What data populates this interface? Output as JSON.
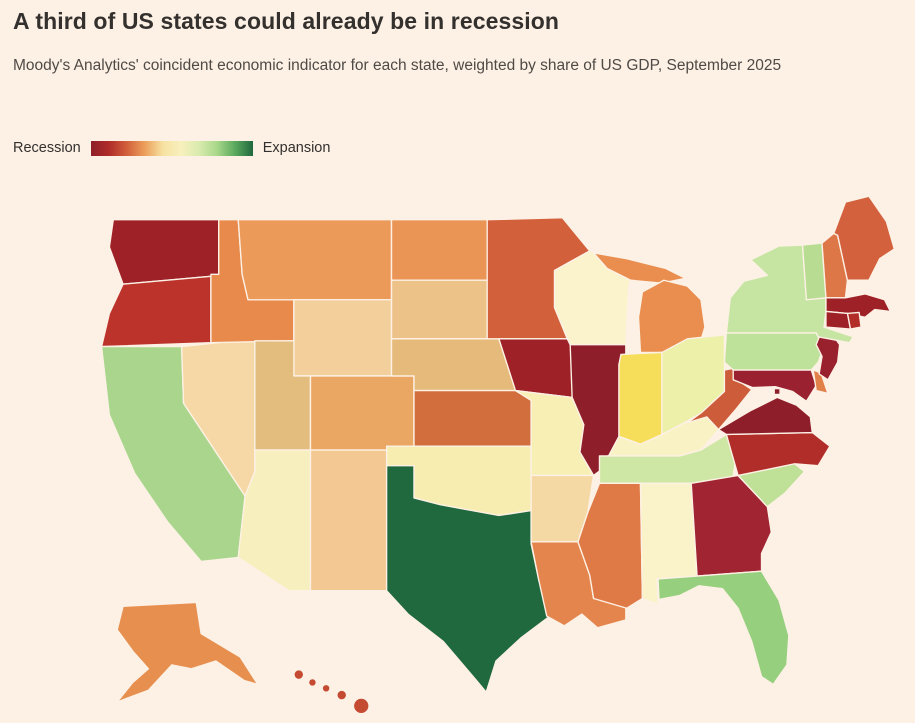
{
  "page": {
    "background": "#fdf1e5",
    "title": "A third of US states could already be in recession",
    "subtitle": "Moody's Analytics' coincident economic indicator for each state, weighted by share of US GDP, September 2025"
  },
  "legend": {
    "left_label": "Recession",
    "right_label": "Expansion",
    "gradient": [
      "#8e1f2a",
      "#b02d2a",
      "#d2603b",
      "#eca05c",
      "#f6e2a2",
      "#f8f0bd",
      "#d9ebae",
      "#a9d78a",
      "#5aa95e",
      "#20683e"
    ]
  },
  "chart_data": {
    "type": "choropleth",
    "title": "A third of US states could already be in recession",
    "subtitle": "Moody's Analytics' coincident economic indicator for each state, weighted by share of US GDP, September 2025",
    "date": "September 2025",
    "scale": {
      "left_end": "Recession",
      "right_end": "Expansion",
      "encoding": "color, dark red (recession) to dark green (expansion)"
    },
    "states": [
      {
        "code": "WA",
        "name": "Washington",
        "color": "#9e2128",
        "category": "recession"
      },
      {
        "code": "OR",
        "name": "Oregon",
        "color": "#bb332b",
        "category": "recession"
      },
      {
        "code": "CA",
        "name": "California",
        "color": "#a9d68c",
        "category": "expanding"
      },
      {
        "code": "NV",
        "name": "Nevada",
        "color": "#f5d8a6",
        "category": "flat"
      },
      {
        "code": "ID",
        "name": "Idaho",
        "color": "#e78a4c",
        "category": "contracting"
      },
      {
        "code": "MT",
        "name": "Montana",
        "color": "#ec9a59",
        "category": "contracting"
      },
      {
        "code": "WY",
        "name": "Wyoming",
        "color": "#f2cf9b",
        "category": "flat"
      },
      {
        "code": "UT",
        "name": "Utah",
        "color": "#e3bd7d",
        "category": "flat"
      },
      {
        "code": "CO",
        "name": "Colorado",
        "color": "#eaa763",
        "category": "contracting"
      },
      {
        "code": "AZ",
        "name": "Arizona",
        "color": "#f7efbd",
        "category": "flat"
      },
      {
        "code": "NM",
        "name": "New Mexico",
        "color": "#f3c893",
        "category": "flat"
      },
      {
        "code": "ND",
        "name": "North Dakota",
        "color": "#ea9455",
        "category": "contracting"
      },
      {
        "code": "SD",
        "name": "South Dakota",
        "color": "#ecc288",
        "category": "flat"
      },
      {
        "code": "NE",
        "name": "Nebraska",
        "color": "#e6ba7a",
        "category": "flat"
      },
      {
        "code": "KS",
        "name": "Kansas",
        "color": "#d26e3e",
        "category": "contracting"
      },
      {
        "code": "OK",
        "name": "Oklahoma",
        "color": "#f8edb1",
        "category": "flat"
      },
      {
        "code": "TX",
        "name": "Texas",
        "color": "#20683e",
        "category": "strong expansion"
      },
      {
        "code": "MN",
        "name": "Minnesota",
        "color": "#d2603b",
        "category": "contracting"
      },
      {
        "code": "IA",
        "name": "Iowa",
        "color": "#9e2128",
        "category": "recession"
      },
      {
        "code": "MO",
        "name": "Missouri",
        "color": "#f8efb5",
        "category": "flat"
      },
      {
        "code": "AR",
        "name": "Arkansas",
        "color": "#f4d9a5",
        "category": "flat"
      },
      {
        "code": "LA",
        "name": "Louisiana",
        "color": "#e5854e",
        "category": "contracting"
      },
      {
        "code": "WI",
        "name": "Wisconsin",
        "color": "#faf3cc",
        "category": "flat"
      },
      {
        "code": "IL",
        "name": "Illinois",
        "color": "#8e1f2a",
        "category": "recession"
      },
      {
        "code": "MI",
        "name": "Michigan",
        "color": "#e98e4f",
        "category": "contracting"
      },
      {
        "code": "IN",
        "name": "Indiana",
        "color": "#f6dd5a",
        "category": "flat"
      },
      {
        "code": "OH",
        "name": "Ohio",
        "color": "#ecf0a9",
        "category": "flat"
      },
      {
        "code": "KY",
        "name": "Kentucky",
        "color": "#f9f2c4",
        "category": "flat"
      },
      {
        "code": "TN",
        "name": "Tennessee",
        "color": "#cfe7a4",
        "category": "expanding"
      },
      {
        "code": "MS",
        "name": "Mississippi",
        "color": "#df7a46",
        "category": "contracting"
      },
      {
        "code": "AL",
        "name": "Alabama",
        "color": "#faf2c9",
        "category": "flat"
      },
      {
        "code": "GA",
        "name": "Georgia",
        "color": "#a02431",
        "category": "recession"
      },
      {
        "code": "FL",
        "name": "Florida",
        "color": "#96cf7d",
        "category": "expanding"
      },
      {
        "code": "SC",
        "name": "South Carolina",
        "color": "#bfe097",
        "category": "expanding"
      },
      {
        "code": "NC",
        "name": "North Carolina",
        "color": "#b02d2a",
        "category": "recession"
      },
      {
        "code": "VA",
        "name": "Virginia",
        "color": "#8e1f2a",
        "category": "recession"
      },
      {
        "code": "WV",
        "name": "West Virginia",
        "color": "#cd5d3a",
        "category": "contracting"
      },
      {
        "code": "MD",
        "name": "Maryland",
        "color": "#9a2130",
        "category": "recession"
      },
      {
        "code": "DC",
        "name": "District of Columbia",
        "color": "#8e1f2a",
        "category": "recession"
      },
      {
        "code": "DE",
        "name": "Delaware",
        "color": "#e2804a",
        "category": "contracting"
      },
      {
        "code": "NJ",
        "name": "New Jersey",
        "color": "#99202d",
        "category": "recession"
      },
      {
        "code": "PA",
        "name": "Pennsylvania",
        "color": "#bfe29a",
        "category": "expanding"
      },
      {
        "code": "NY",
        "name": "New York",
        "color": "#c6e5a2",
        "category": "expanding"
      },
      {
        "code": "VT",
        "name": "Vermont",
        "color": "#b8dd92",
        "category": "expanding"
      },
      {
        "code": "NH",
        "name": "New Hampshire",
        "color": "#dd7747",
        "category": "contracting"
      },
      {
        "code": "ME",
        "name": "Maine",
        "color": "#d4613d",
        "category": "contracting"
      },
      {
        "code": "MA",
        "name": "Massachusetts",
        "color": "#9e2128",
        "category": "recession"
      },
      {
        "code": "CT",
        "name": "Connecticut",
        "color": "#9e2128",
        "category": "recession"
      },
      {
        "code": "RI",
        "name": "Rhode Island",
        "color": "#b22d28",
        "category": "recession"
      },
      {
        "code": "AK",
        "name": "Alaska",
        "color": "#e78f4f",
        "category": "contracting"
      },
      {
        "code": "HI",
        "name": "Hawaii",
        "color": "#c44a31",
        "category": "recession"
      }
    ]
  }
}
